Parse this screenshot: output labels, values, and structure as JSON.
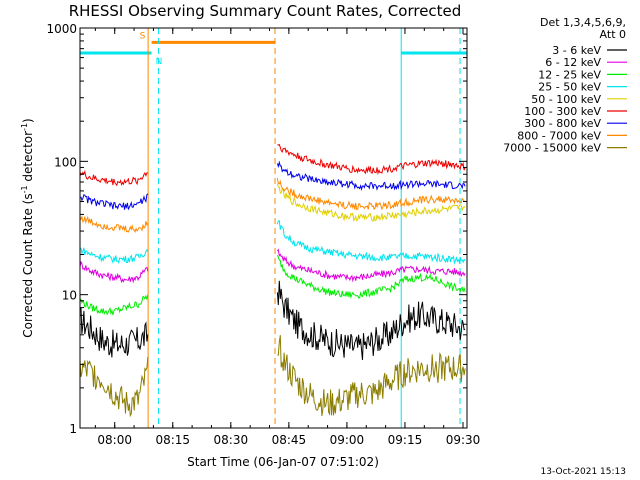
{
  "chart_data": {
    "type": "line",
    "title": "RHESSI Observing Summary Count Rates, Corrected",
    "xlabel": "Start Time (06-Jan-07 07:51:02)",
    "ylabel_main": "Corrected Count Rate (s",
    "ylabel_exp1": "-1",
    "ylabel_mid": " detector",
    "ylabel_exp2": "-1",
    "ylabel_end": ")",
    "timestamp": "13-Oct-2021 15:13",
    "x_unit": "minutes after 07:51:02",
    "xlim": [
      0,
      100
    ],
    "ylim": [
      1,
      1000
    ],
    "y_scale": "log",
    "x_ticks": [
      {
        "label": "08:00",
        "value": 8.97
      },
      {
        "label": "08:15",
        "value": 23.97
      },
      {
        "label": "08:30",
        "value": 38.97
      },
      {
        "label": "08:45",
        "value": 53.97
      },
      {
        "label": "09:00",
        "value": 68.97
      },
      {
        "label": "09:15",
        "value": 83.97
      },
      {
        "label": "09:30",
        "value": 98.97
      }
    ],
    "y_ticks": [
      {
        "label": "1",
        "value": 1
      },
      {
        "label": "10",
        "value": 10
      },
      {
        "label": "100",
        "value": 100
      },
      {
        "label": "1000",
        "value": 1000
      }
    ],
    "legend_header": [
      "Det 1,3,4,5,6,9,",
      "Att 0"
    ],
    "legend_position": "outside-right",
    "gaps": [
      [
        18.5,
        50.5
      ]
    ],
    "series": [
      {
        "name": "3 - 6 keV",
        "color": "#000000",
        "x": [
          0,
          3,
          6,
          9,
          12,
          15,
          17.8,
          51,
          53,
          56,
          60,
          64,
          68,
          72,
          76,
          80,
          84,
          88,
          92,
          96,
          99.5
        ],
        "y": [
          6.5,
          5.5,
          4.5,
          4.2,
          4.3,
          4.5,
          5.0,
          11,
          8,
          6,
          5,
          4.5,
          4.2,
          4.0,
          4.5,
          5.0,
          6.5,
          7.0,
          6.5,
          6.0,
          5.5
        ]
      },
      {
        "name": "6 - 12 keV",
        "color": "#e000e0",
        "x": [
          0,
          3,
          6,
          9,
          12,
          15,
          17.8,
          51,
          53,
          56,
          60,
          64,
          68,
          72,
          76,
          80,
          84,
          88,
          92,
          96,
          99.5
        ],
        "y": [
          17,
          15,
          14,
          13.5,
          13,
          13.5,
          16,
          21,
          18,
          16,
          15,
          14,
          13.5,
          13.5,
          14,
          14.5,
          15.5,
          15.5,
          15,
          15,
          14.5
        ]
      },
      {
        "name": "12 - 25 keV",
        "color": "#00ee00",
        "x": [
          0,
          3,
          6,
          9,
          12,
          15,
          17.8,
          51,
          53,
          56,
          60,
          64,
          68,
          72,
          76,
          80,
          84,
          88,
          92,
          96,
          99.5
        ],
        "y": [
          9,
          8,
          7.5,
          7.5,
          8,
          8.5,
          10,
          19,
          15,
          13,
          11.5,
          10.5,
          10,
          10,
          10.5,
          11,
          13,
          13.5,
          13,
          11.5,
          10.5
        ]
      },
      {
        "name": "25 - 50 keV",
        "color": "#00e5ee",
        "x": [
          0,
          3,
          6,
          9,
          12,
          15,
          17.8,
          51,
          53,
          56,
          60,
          64,
          68,
          72,
          76,
          80,
          84,
          88,
          92,
          96,
          99.5
        ],
        "y": [
          22,
          20,
          19,
          18.5,
          18.5,
          19,
          22,
          36,
          28,
          24,
          22,
          21,
          20,
          19.5,
          19,
          19,
          19.5,
          19.5,
          19,
          18.5,
          18
        ]
      },
      {
        "name": "50 - 100 keV",
        "color": "#e0d000",
        "x": [
          51,
          53,
          56,
          60,
          64,
          68,
          72,
          76,
          80,
          84,
          88,
          92,
          96,
          99.5
        ],
        "y": [
          65,
          55,
          48,
          44,
          41,
          39,
          38,
          38,
          39,
          40,
          42,
          43,
          44,
          45
        ]
      },
      {
        "name": "100 - 300 keV",
        "color": "#ee0000",
        "x": [
          0,
          3,
          6,
          9,
          12,
          15,
          17.8,
          51,
          53,
          56,
          60,
          64,
          68,
          72,
          76,
          80,
          84,
          88,
          92,
          96,
          99.5
        ],
        "y": [
          82,
          75,
          72,
          70,
          70,
          72,
          85,
          135,
          120,
          110,
          100,
          94,
          89,
          86,
          86,
          88,
          92,
          96,
          97,
          95,
          90
        ]
      },
      {
        "name": "300 - 800 keV",
        "color": "#0000ee",
        "x": [
          0,
          3,
          6,
          9,
          12,
          15,
          17.8,
          51,
          53,
          56,
          60,
          64,
          68,
          72,
          76,
          80,
          84,
          88,
          92,
          96,
          99.5
        ],
        "y": [
          55,
          50,
          48,
          46,
          46,
          48,
          55,
          95,
          85,
          78,
          73,
          70,
          68,
          66,
          65,
          66,
          67,
          68,
          67,
          66,
          65
        ]
      },
      {
        "name": "800 - 7000 keV",
        "color": "#ff8800",
        "x": [
          0,
          3,
          6,
          9,
          12,
          15,
          17.8,
          51,
          53,
          56,
          60,
          64,
          68,
          72,
          76,
          80,
          84,
          88,
          92,
          96,
          99.5
        ],
        "y": [
          38,
          35,
          33,
          32,
          31,
          31,
          35,
          72,
          62,
          56,
          52,
          49,
          47,
          46,
          46,
          47,
          49,
          51,
          52,
          51,
          50
        ]
      },
      {
        "name": "7000 - 15000 keV",
        "color": "#8b7d00",
        "x": [
          0,
          3,
          6,
          9,
          12,
          15,
          17.8,
          51,
          53,
          56,
          60,
          64,
          68,
          72,
          76,
          80,
          84,
          88,
          92,
          96,
          99.5
        ],
        "y": [
          2.8,
          2.6,
          2.3,
          1.8,
          1.5,
          1.6,
          2.8,
          4.5,
          3.0,
          2.2,
          1.7,
          1.5,
          1.6,
          1.8,
          1.8,
          2.2,
          2.6,
          2.8,
          2.8,
          2.8,
          2.8
        ]
      }
    ],
    "flags": [
      {
        "label": "S",
        "color": "#ff8800",
        "y": 780,
        "x_start": 18.5,
        "x_end": 50.5
      },
      {
        "label": "N",
        "color": "#00e5ee",
        "y": 650,
        "x_start": 0,
        "x_end": 18.5
      },
      {
        "label": "",
        "color": "#00e5ee",
        "y": 650,
        "x_start": 83,
        "x_end": 100
      }
    ],
    "vlines": [
      {
        "x": 17.6,
        "color": "#ff8800",
        "style": "solid"
      },
      {
        "x": 20.3,
        "color": "#00e5ee",
        "style": "dashed"
      },
      {
        "x": 50.4,
        "color": "#ff8800",
        "style": "dashed"
      },
      {
        "x": 83.0,
        "color": "#00e5ee",
        "style": "solid"
      },
      {
        "x": 98.2,
        "color": "#00e5ee",
        "style": "dashed"
      }
    ]
  }
}
